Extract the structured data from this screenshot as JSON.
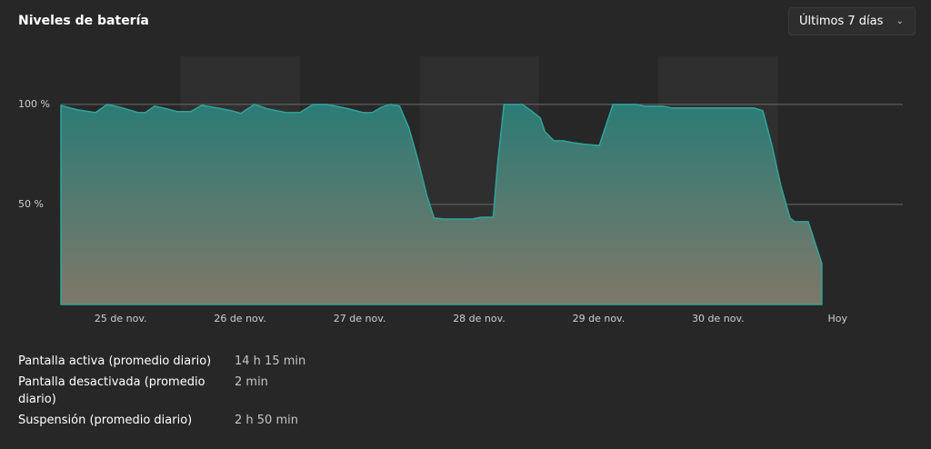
{
  "header": {
    "title": "Niveles de batería",
    "dropdown": "Últimos 7 días"
  },
  "chart_data": {
    "type": "area",
    "x": [
      0,
      0.137,
      0.289,
      0.388,
      0.517,
      0.646,
      0.707,
      0.783,
      0.859,
      0.973,
      1.087,
      1.178,
      1.315,
      1.429,
      1.505,
      1.619,
      1.733,
      1.884,
      1.998,
      2.112,
      2.226,
      2.378,
      2.53,
      2.606,
      2.682,
      2.758,
      2.834,
      2.91,
      2.986,
      3.062,
      3.123,
      3.214,
      3.442,
      3.518,
      3.617,
      3.655,
      3.708,
      3.86,
      3.936,
      4.012,
      4.05,
      4.126,
      4.202,
      4.278,
      4.392,
      4.506,
      4.544,
      4.62,
      4.81,
      4.886,
      5.038,
      5.114,
      5.798,
      5.874,
      5.95,
      6.026,
      6.102,
      6.14,
      6.254,
      6.368
    ],
    "values": [
      99.5,
      97.3,
      95.9,
      100,
      98.2,
      95.9,
      95.9,
      99.1,
      98.2,
      96.4,
      96.4,
      99.5,
      98.2,
      96.8,
      95.5,
      100,
      97.7,
      95.9,
      95.9,
      100,
      100,
      98.2,
      95.9,
      95.9,
      98.6,
      100,
      99.1,
      88.6,
      72.7,
      54.5,
      43.2,
      42.7,
      42.7,
      43.6,
      43.6,
      70.5,
      100,
      100,
      96.8,
      93.2,
      86.4,
      81.8,
      81.8,
      80.9,
      80,
      79.5,
      86.4,
      100,
      100,
      99.1,
      99.1,
      98.2,
      98.2,
      96.8,
      79.5,
      59.1,
      43.2,
      41.4,
      41.4,
      20.5
    ],
    "color": "#2fa59c",
    "xlim": [
      0,
      7
    ],
    "xticks": [
      {
        "value": 0.5,
        "label": "25 de nov."
      },
      {
        "value": 1.5,
        "label": "26 de nov."
      },
      {
        "value": 2.5,
        "label": "27 de nov."
      },
      {
        "value": 3.5,
        "label": "28 de nov."
      },
      {
        "value": 4.5,
        "label": "29 de nov."
      },
      {
        "value": 5.5,
        "label": "30 de nov."
      },
      {
        "value": 6.5,
        "label": "Hoy"
      }
    ],
    "ylim": [
      0,
      124
    ],
    "yticks": [
      {
        "value": 50,
        "label": "50 %"
      },
      {
        "value": 100,
        "label": "100 %"
      }
    ],
    "grid": true
  },
  "stats": [
    {
      "label": "Pantalla activa (promedio diario)",
      "value": "14 h 15 min"
    },
    {
      "label": "Pantalla desactivada (promedio diario)",
      "value": "2 min"
    },
    {
      "label": "Suspensión (promedio diario)",
      "value": "2 h 50 min"
    }
  ]
}
